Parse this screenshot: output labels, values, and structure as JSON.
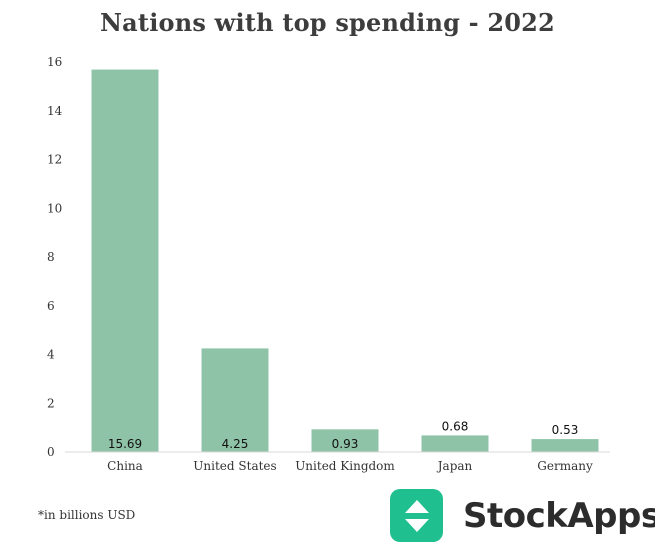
{
  "chart_data": {
    "type": "bar",
    "title": "Nations with top spending - 2022",
    "categories": [
      "China",
      "United States",
      "United Kingdom",
      "Japan",
      "Germany"
    ],
    "values": [
      15.69,
      4.25,
      0.93,
      0.68,
      0.53
    ],
    "value_labels": [
      "15.69",
      "4.25",
      "0.93",
      "0.68",
      "0.53"
    ],
    "yticks": [
      "0",
      "2",
      "4",
      "6",
      "8",
      "10",
      "12",
      "14",
      "16"
    ],
    "ylim": [
      0,
      16
    ],
    "xlabel": "",
    "ylabel": "",
    "bar_color": "#8fc3a8",
    "footnote": "*in billions USD"
  },
  "brand": {
    "name": "StockApps",
    "color": "#1fbf8f",
    "icon": "stockapps-logo-icon"
  }
}
